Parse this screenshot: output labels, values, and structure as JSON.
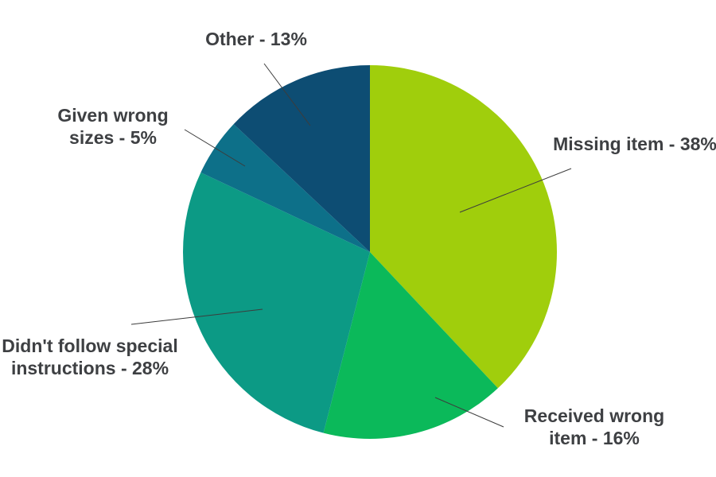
{
  "chart_data": {
    "type": "pie",
    "title": "",
    "categories": [
      "Missing item",
      "Received wrong item",
      "Didn't follow special instructions",
      "Given wrong sizes",
      "Other"
    ],
    "values": [
      38,
      16,
      28,
      5,
      13
    ],
    "unit": "%",
    "colors": [
      "#a0ce0c",
      "#0bb95a",
      "#0c9a85",
      "#0d7089",
      "#0d4d73"
    ],
    "start_angle_deg": 0,
    "direction": "clockwise",
    "legend_position": "none",
    "label_style": "outside-with-leader-lines",
    "label_color": "#3e4043",
    "leader_line_color": "#3c3c3c",
    "background_color": "#ffffff",
    "labels": [
      {
        "for": "Missing item",
        "lines": [
          "Missing item - 38%"
        ]
      },
      {
        "for": "Received wrong item",
        "lines": [
          "Received wrong",
          "item - 16%"
        ]
      },
      {
        "for": "Didn't follow special instructions",
        "lines": [
          "Didn't follow special",
          "instructions - 28%"
        ]
      },
      {
        "for": "Given wrong sizes",
        "lines": [
          "Given wrong",
          "sizes - 5%"
        ]
      },
      {
        "for": "Other",
        "lines": [
          "Other - 13%"
        ]
      }
    ]
  }
}
